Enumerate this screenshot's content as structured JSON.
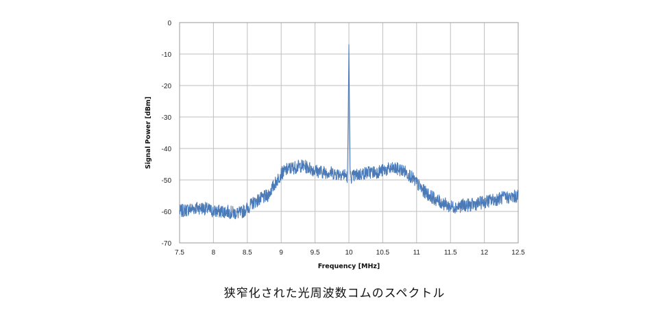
{
  "caption": "狭窄化された光周波数コムのスペクトル",
  "chart_data": {
    "type": "line",
    "title": "",
    "xlabel": "Frequency [MHz]",
    "ylabel": "Signal Power  [dBm]",
    "xlim": [
      7.5,
      12.5
    ],
    "ylim": [
      -70,
      0
    ],
    "xticks": [
      7.5,
      8,
      8.5,
      9,
      9.5,
      10,
      10.5,
      11,
      11.5,
      12,
      12.5
    ],
    "xtick_labels": [
      "7.5",
      "8",
      "8.5",
      "9",
      "9.5",
      "10",
      "10.5",
      "11",
      "11.5",
      "12",
      "12.5"
    ],
    "yticks": [
      0,
      -10,
      -20,
      -30,
      -40,
      -50,
      -60,
      -70
    ],
    "ytick_labels": [
      "0",
      "-10",
      "-20",
      "-30",
      "-40",
      "-50",
      "-60",
      "-70"
    ],
    "grid": true,
    "line_color": "#4a7ab8",
    "series": [
      {
        "x": [
          7.5,
          7.6,
          7.7,
          7.8,
          7.9,
          8.0,
          8.1,
          8.2,
          8.3,
          8.4,
          8.5,
          8.6,
          8.7,
          8.8,
          8.9,
          9.0,
          9.1,
          9.2,
          9.3,
          9.4,
          9.5,
          9.6,
          9.7,
          9.8,
          9.9,
          9.95,
          9.98,
          9.99,
          10.0,
          10.01,
          10.02,
          10.05,
          10.1,
          10.2,
          10.3,
          10.4,
          10.5,
          10.6,
          10.7,
          10.8,
          10.9,
          11.0,
          11.1,
          11.2,
          11.3,
          11.4,
          11.5,
          11.6,
          11.7,
          11.8,
          11.9,
          12.0,
          12.1,
          12.2,
          12.3,
          12.4,
          12.5
        ],
        "y": [
          -60,
          -59.5,
          -59,
          -58.8,
          -59.2,
          -60,
          -60,
          -60,
          -60.5,
          -60.5,
          -59,
          -57,
          -56,
          -55,
          -51.5,
          -48,
          -46.5,
          -46,
          -45.5,
          -46,
          -47,
          -47.5,
          -47.5,
          -48,
          -48,
          -48.5,
          -49,
          -30,
          -7,
          -30,
          -49,
          -49,
          -48.5,
          -48,
          -47.5,
          -47.5,
          -47,
          -46.5,
          -46.5,
          -47,
          -48.5,
          -51,
          -53.5,
          -55,
          -56.5,
          -57.5,
          -58.5,
          -58.5,
          -58,
          -58,
          -57.5,
          -57,
          -56.5,
          -56,
          -55.5,
          -55.5,
          -55
        ]
      }
    ]
  }
}
